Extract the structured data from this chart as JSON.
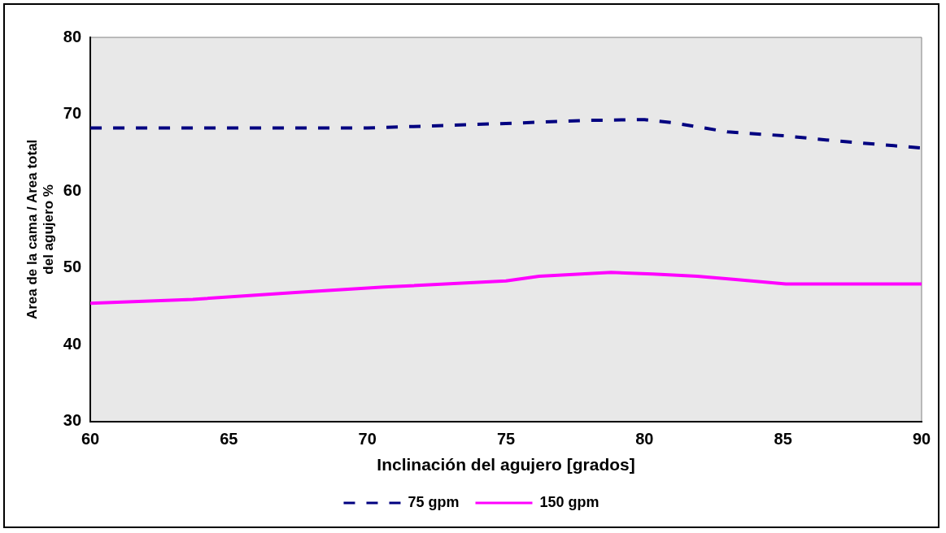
{
  "chart_data": {
    "type": "line",
    "xlabel": "Inclinación del agujero [grados]",
    "ylabel": "Area de la cama / Area total del agujero %",
    "xlim": [
      60,
      90
    ],
    "xticks": [
      60,
      65,
      70,
      75,
      80,
      85,
      90
    ],
    "ylim": [
      30,
      80
    ],
    "yticks": [
      30,
      40,
      50,
      60,
      70,
      80
    ],
    "grid": false,
    "legend": "bottom",
    "marker": "none",
    "series": [
      {
        "name": "75 gpm",
        "color": "#000080",
        "line_style": "dashed",
        "x": [
          60,
          70,
          75,
          78,
          80,
          81,
          83,
          85,
          87,
          89,
          90
        ],
        "values": [
          68.2,
          68.2,
          68.8,
          69.2,
          69.3,
          68.9,
          67.7,
          67.2,
          66.5,
          65.9,
          65.6
        ]
      },
      {
        "name": "150 gpm",
        "color": "#ff00ff",
        "line_style": "solid",
        "x": [
          60,
          63.7,
          67.4,
          70.6,
          75,
          76.2,
          78.8,
          80.3,
          81.9,
          83.2,
          85.1,
          90
        ],
        "values": [
          45.4,
          45.9,
          46.8,
          47.5,
          48.3,
          48.9,
          49.4,
          49.2,
          48.9,
          48.5,
          47.9,
          47.9
        ]
      }
    ]
  }
}
